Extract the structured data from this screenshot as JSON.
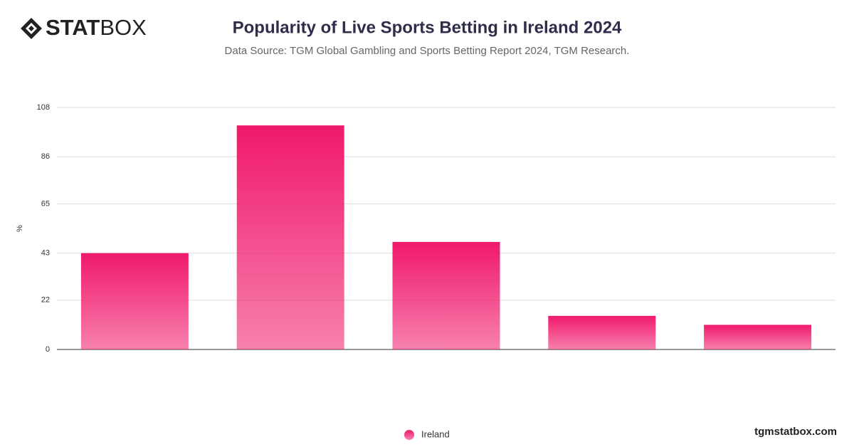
{
  "logo": {
    "bold": "STAT",
    "light": "BOX"
  },
  "footer": "tgmstatbox.com",
  "chart_data": {
    "type": "bar",
    "title": "Popularity of Live Sports Betting in Ireland 2024",
    "subtitle": "Data Source: TGM Global Gambling and Sports Betting Report 2024, TGM Research.",
    "y_label": "%",
    "categories": [
      null,
      null,
      null,
      null,
      null
    ],
    "series": [
      {
        "name": "Ireland",
        "color": "#f0196b",
        "values": [
          43,
          100,
          48,
          15,
          11
        ]
      }
    ],
    "ylim": [
      0,
      108
    ],
    "yticks": [
      0,
      22,
      43,
      65,
      86,
      108
    ],
    "grid": true,
    "legend": "bottom"
  }
}
